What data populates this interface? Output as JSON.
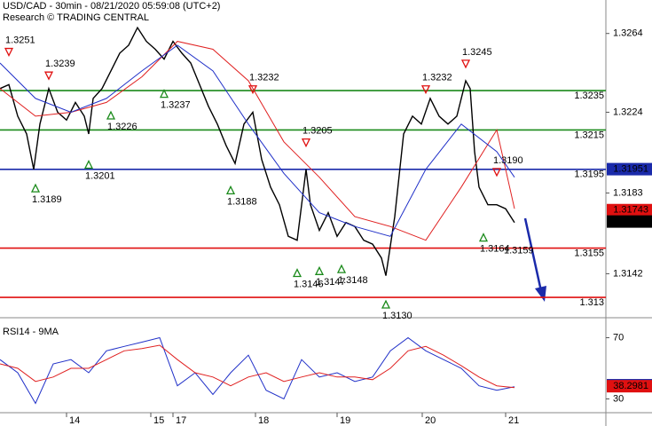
{
  "chart_data": [
    {
      "type": "line",
      "title": "USD/CAD - 30min - 08/21/2020 05:59:08 (UTC+2)",
      "subtitle": "Research © TRADING CENTRAL",
      "xlim": [
        0,
        136.6
      ],
      "ylim": [
        1.3121,
        1.3281
      ],
      "yticks": [
        1.3264,
        1.3224,
        1.3183,
        1.3142
      ],
      "series": [
        {
          "color": "#000000",
          "x": [
            0,
            2,
            4,
            6,
            7.6,
            9,
            11,
            13,
            15,
            17,
            19,
            20,
            21,
            23,
            25,
            27,
            29,
            31,
            33,
            35,
            37,
            39,
            41,
            43,
            45,
            47,
            49,
            51,
            53,
            55,
            57,
            59,
            61,
            63,
            65,
            67,
            69,
            70,
            72,
            74,
            76,
            78,
            80,
            82,
            84,
            86,
            87,
            89,
            91,
            93,
            95,
            97,
            99,
            101,
            103,
            105,
            106,
            107,
            108,
            110,
            112,
            114,
            116
          ],
          "values": [
            1.3236,
            1.3238,
            1.3222,
            1.3213,
            1.3195,
            1.3218,
            1.3236,
            1.3224,
            1.322,
            1.3229,
            1.3222,
            1.3213,
            1.3231,
            1.3236,
            1.3245,
            1.3254,
            1.3258,
            1.3267,
            1.326,
            1.3256,
            1.3251,
            1.326,
            1.3254,
            1.3249,
            1.3238,
            1.3227,
            1.3218,
            1.3207,
            1.3198,
            1.3218,
            1.3224,
            1.32,
            1.3186,
            1.3177,
            1.3161,
            1.3159,
            1.3195,
            1.3177,
            1.3164,
            1.3173,
            1.3161,
            1.3168,
            1.3166,
            1.3159,
            1.3157,
            1.315,
            1.3141,
            1.3171,
            1.3213,
            1.3222,
            1.3218,
            1.3231,
            1.3222,
            1.3218,
            1.3222,
            1.324,
            1.3236,
            1.3204,
            1.3186,
            1.3177,
            1.3177,
            1.3175,
            1.3168
          ]
        },
        {
          "color": "#e02020",
          "x": [
            0,
            8,
            16,
            24,
            32,
            40,
            48,
            56,
            64,
            72,
            80,
            88,
            96,
            104,
            112,
            116
          ],
          "values": [
            1.3236,
            1.3222,
            1.3224,
            1.3229,
            1.3242,
            1.326,
            1.3256,
            1.324,
            1.3209,
            1.3191,
            1.3171,
            1.3166,
            1.3159,
            1.3186,
            1.3215,
            1.3175
          ]
        },
        {
          "color": "#2030c8",
          "x": [
            0,
            8,
            16,
            24,
            32,
            40,
            48,
            56,
            64,
            72,
            80,
            88,
            96,
            104,
            112,
            116
          ],
          "values": [
            1.3249,
            1.3231,
            1.3224,
            1.3231,
            1.3245,
            1.3258,
            1.3245,
            1.3218,
            1.3193,
            1.3173,
            1.3166,
            1.3161,
            1.3195,
            1.3218,
            1.3204,
            1.3191
          ]
        }
      ],
      "levels": [
        {
          "value": 1.3235,
          "color": "#1a8a1a"
        },
        {
          "value": 1.3215,
          "color": "#1a8a1a"
        },
        {
          "value": 1.3195,
          "color": "#1a2aaa"
        },
        {
          "value": 1.3155,
          "color": "#e01010"
        },
        {
          "value": 1.313,
          "color": "#e01010"
        }
      ],
      "last_values": [
        {
          "value": 1.31951,
          "color": "#1a2aaa"
        },
        {
          "value": 1.31743,
          "color": "#e01010"
        },
        {
          "value": 1.31685,
          "color": "#000000"
        }
      ],
      "annotations": [
        {
          "x": 2,
          "value": 1.3251,
          "kind": "high"
        },
        {
          "x": 11,
          "value": 1.3239,
          "kind": "high"
        },
        {
          "x": 25,
          "value": 1.3226,
          "kind": "low"
        },
        {
          "x": 20,
          "value": 1.3201,
          "kind": "low"
        },
        {
          "x": 8,
          "value": 1.3189,
          "kind": "low"
        },
        {
          "x": 37,
          "value": 1.3237,
          "kind": "low"
        },
        {
          "x": 57,
          "value": 1.3232,
          "kind": "high"
        },
        {
          "x": 52,
          "value": 1.3188,
          "kind": "low"
        },
        {
          "x": 69,
          "value": 1.3205,
          "kind": "high"
        },
        {
          "x": 67,
          "value": 1.3146,
          "kind": "low"
        },
        {
          "x": 72,
          "value": 1.3147,
          "kind": "low"
        },
        {
          "x": 77,
          "value": 1.3148,
          "kind": "low"
        },
        {
          "x": 87,
          "value": 1.313,
          "label": "1.3130",
          "kind": "low"
        },
        {
          "x": 96,
          "value": 1.3232,
          "kind": "high"
        },
        {
          "x": 105,
          "value": 1.3245,
          "kind": "high"
        },
        {
          "x": 112,
          "value": 1.319,
          "label": "1.3190",
          "kind": "high"
        },
        {
          "x": 109,
          "value": 1.3164,
          "kind": "low"
        },
        {
          "x": 114,
          "value": 1.3159,
          "kind": "text"
        }
      ]
    },
    {
      "type": "line",
      "title": "RSI14 - 9MA",
      "xlim": [
        0,
        136.6
      ],
      "ylim": [
        21,
        79
      ],
      "yticks": [
        70,
        30
      ],
      "xticks": [
        {
          "value": 15,
          "label": "14"
        },
        {
          "value": 34,
          "label": "15"
        },
        {
          "value": 39,
          "label": "17"
        },
        {
          "value": 57.6,
          "label": "18"
        },
        {
          "value": 76,
          "label": "19"
        },
        {
          "value": 95.2,
          "label": "20"
        },
        {
          "value": 114,
          "label": "21"
        }
      ],
      "series": [
        {
          "color": "#2030c8",
          "x": [
            0,
            4,
            8,
            12,
            16,
            20,
            24,
            28,
            32,
            36,
            40,
            44,
            48,
            52,
            56,
            60,
            64,
            68,
            72,
            76,
            80,
            84,
            88,
            92,
            96,
            100,
            104,
            108,
            112,
            116
          ],
          "values": [
            55.7,
            47.1,
            27.1,
            52.9,
            55.7,
            47.1,
            61.4,
            64.3,
            67.1,
            70,
            38.6,
            47.1,
            32.9,
            47.1,
            58.6,
            35.7,
            30,
            55.7,
            44.3,
            47.1,
            41.4,
            44.3,
            61.4,
            70,
            61.4,
            55.7,
            50,
            38.6,
            35.7,
            38
          ]
        },
        {
          "color": "#e02020",
          "x": [
            0,
            4,
            8,
            12,
            16,
            20,
            24,
            28,
            32,
            36,
            40,
            44,
            48,
            52,
            56,
            60,
            64,
            68,
            72,
            76,
            80,
            84,
            88,
            92,
            96,
            100,
            104,
            108,
            112,
            116
          ],
          "values": [
            52.9,
            50,
            41.4,
            44.3,
            50,
            50,
            55.7,
            61.4,
            62.9,
            65.1,
            55.7,
            47.1,
            44.3,
            38.6,
            44.3,
            47.1,
            41.4,
            44.3,
            47.1,
            44.3,
            44.3,
            42.6,
            50,
            61.4,
            64.3,
            58.6,
            51.7,
            44.3,
            38.6,
            37.4
          ]
        }
      ],
      "last_values": [
        {
          "value": 38.9566,
          "color": "#1a2aaa"
        },
        {
          "value": 38.2981,
          "color": "#e01010"
        }
      ]
    }
  ]
}
